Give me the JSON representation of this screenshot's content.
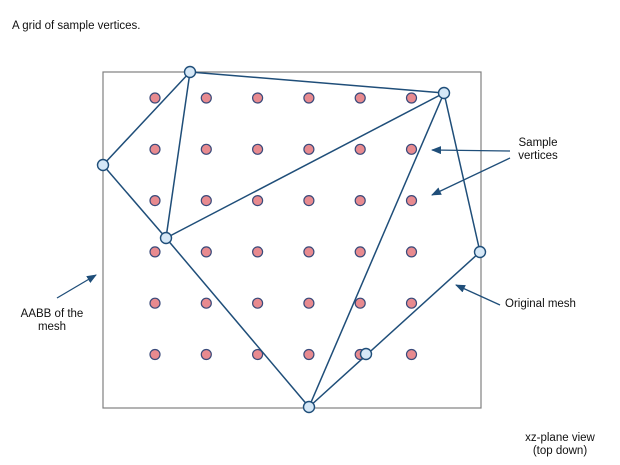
{
  "caption": "A grid of sample vertices.",
  "labels": {
    "sample_vertices": "Sample\nvertices",
    "aabb": "AABB of the\nmesh",
    "original_mesh": "Original mesh",
    "view": "xz-plane view\n(top down)"
  },
  "colors": {
    "background": "#ffffff",
    "aabb_stroke": "#808080",
    "mesh_stroke": "#1f4e79",
    "mesh_vertex_fill": "#d6e8f7",
    "sample_fill": "#e88a8f",
    "sample_stroke": "#3a4a7a",
    "arrow": "#1f4e79",
    "text": "#111111"
  },
  "sample_grid": {
    "rows": 6,
    "cols": 6
  },
  "mesh": {
    "vertex_count": 7,
    "edges": [
      [
        0,
        1
      ],
      [
        1,
        2
      ],
      [
        2,
        0
      ],
      [
        0,
        3
      ],
      [
        3,
        2
      ],
      [
        2,
        4
      ],
      [
        4,
        5
      ],
      [
        5,
        6
      ],
      [
        6,
        4
      ],
      [
        6,
        2
      ]
    ]
  }
}
